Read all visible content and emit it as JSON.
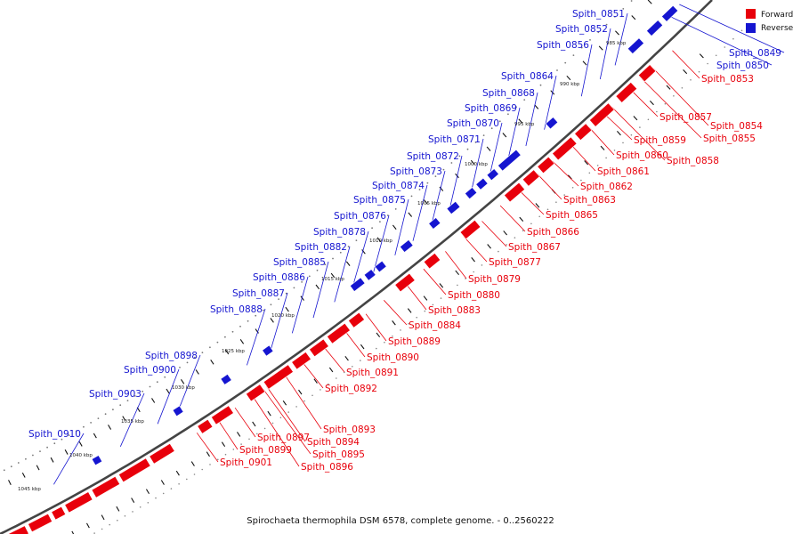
{
  "caption": "Spirochaeta thermophila DSM 6578, complete genome. - 0..2560222",
  "legend": [
    {
      "label": "Forward",
      "color": "#e8000b"
    },
    {
      "label": "Reverse",
      "color": "#1515d0"
    }
  ],
  "colors": {
    "forward": "#e8000b",
    "reverse": "#1515d0",
    "backbone": "#444444"
  },
  "kbp_ticks": [
    "985 kbp",
    "990 kbp",
    "995 kbp",
    "1000 kbp",
    "1005 kbp",
    "1010 kbp",
    "1015 kbp",
    "1020 kbp",
    "1025 kbp",
    "1030 kbp",
    "1035 kbp",
    "1040 kbp",
    "1045 kbp"
  ],
  "reverse_genes": [
    "Spith_0849",
    "Spith_0850",
    "Spith_0851",
    "Spith_0852",
    "Spith_0856",
    "Spith_0864",
    "Spith_0868",
    "Spith_0869",
    "Spith_0870",
    "Spith_0871",
    "Spith_0872",
    "Spith_0873",
    "Spith_0874",
    "Spith_0875",
    "Spith_0876",
    "Spith_0878",
    "Spith_0882",
    "Spith_0885",
    "Spith_0886",
    "Spith_0887",
    "Spith_0888",
    "Spith_0898",
    "Spith_0900",
    "Spith_0903",
    "Spith_0910"
  ],
  "forward_genes": [
    "Spith_0853",
    "Spith_0854",
    "Spith_0855",
    "Spith_0857",
    "Spith_0858",
    "Spith_0859",
    "Spith_0860",
    "Spith_0861",
    "Spith_0862",
    "Spith_0863",
    "Spith_0865",
    "Spith_0866",
    "Spith_0867",
    "Spith_0877",
    "Spith_0879",
    "Spith_0880",
    "Spith_0883",
    "Spith_0884",
    "Spith_0889",
    "Spith_0890",
    "Spith_0891",
    "Spith_0892",
    "Spith_0893",
    "Spith_0894",
    "Spith_0895",
    "Spith_0896",
    "Spith_0897",
    "Spith_0899",
    "Spith_0901"
  ]
}
